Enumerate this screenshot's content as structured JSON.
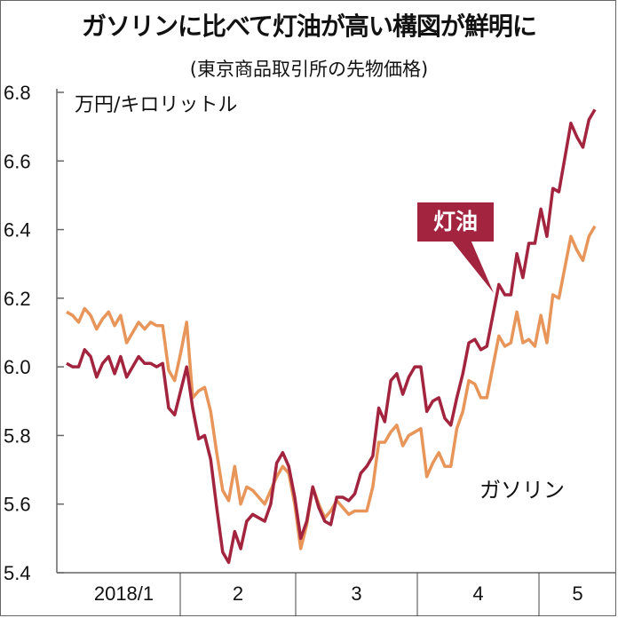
{
  "title": "ガソリンに比べて灯油が高い構図が鮮明に",
  "subtitle": "(東京商品取引所の先物価格)",
  "chart_data": {
    "type": "line",
    "ylabel": "万円/キロリットル",
    "ylim": [
      5.4,
      6.8
    ],
    "yticks": [
      "5.4",
      "5.6",
      "5.8",
      "6.0",
      "6.2",
      "6.4",
      "6.6",
      "6.8"
    ],
    "xticks": [
      "2018/1",
      "2",
      "3",
      "4",
      "5"
    ],
    "grid": false,
    "series": [
      {
        "name": "灯油",
        "color": "#a3243f",
        "values": [
          6.01,
          6.0,
          6.0,
          6.05,
          6.03,
          5.97,
          6.01,
          6.03,
          5.98,
          6.03,
          5.97,
          6.0,
          6.03,
          6.01,
          6.01,
          6.0,
          6.01,
          5.88,
          5.86,
          5.93,
          6.0,
          5.88,
          5.79,
          5.8,
          5.73,
          5.59,
          5.46,
          5.43,
          5.52,
          5.47,
          5.55,
          5.57,
          5.56,
          5.55,
          5.6,
          5.72,
          5.75,
          5.71,
          5.62,
          5.5,
          5.55,
          5.65,
          5.59,
          5.55,
          5.54,
          5.62,
          5.62,
          5.61,
          5.63,
          5.69,
          5.71,
          5.74,
          5.88,
          5.84,
          5.96,
          5.98,
          5.92,
          5.97,
          6.0,
          6.0,
          5.87,
          5.9,
          5.91,
          5.85,
          5.83,
          5.91,
          5.98,
          6.07,
          6.08,
          6.05,
          6.06,
          6.15,
          6.24,
          6.21,
          6.21,
          6.33,
          6.26,
          6.36,
          6.36,
          6.46,
          6.38,
          6.52,
          6.51,
          6.61,
          6.71,
          6.67,
          6.64,
          6.72,
          6.75
        ]
      },
      {
        "name": "ガソリン",
        "color": "#e8955a",
        "values": [
          6.16,
          6.15,
          6.13,
          6.17,
          6.15,
          6.11,
          6.14,
          6.16,
          6.12,
          6.15,
          6.07,
          6.1,
          6.13,
          6.11,
          6.13,
          6.12,
          6.12,
          5.99,
          5.96,
          6.04,
          6.13,
          5.91,
          5.93,
          5.94,
          5.87,
          5.75,
          5.64,
          5.61,
          5.71,
          5.6,
          5.65,
          5.64,
          5.62,
          5.6,
          5.64,
          5.68,
          5.71,
          5.69,
          5.6,
          5.47,
          5.54,
          5.65,
          5.6,
          5.56,
          5.58,
          5.61,
          5.59,
          5.57,
          5.58,
          5.58,
          5.58,
          5.65,
          5.78,
          5.78,
          5.81,
          5.83,
          5.77,
          5.8,
          5.81,
          5.82,
          5.68,
          5.72,
          5.75,
          5.71,
          5.71,
          5.82,
          5.87,
          5.96,
          5.95,
          5.91,
          5.91,
          6.0,
          6.09,
          6.06,
          6.07,
          6.16,
          6.07,
          6.08,
          6.06,
          6.15,
          6.07,
          6.21,
          6.2,
          6.29,
          6.38,
          6.34,
          6.31,
          6.38,
          6.41
        ]
      }
    ]
  }
}
